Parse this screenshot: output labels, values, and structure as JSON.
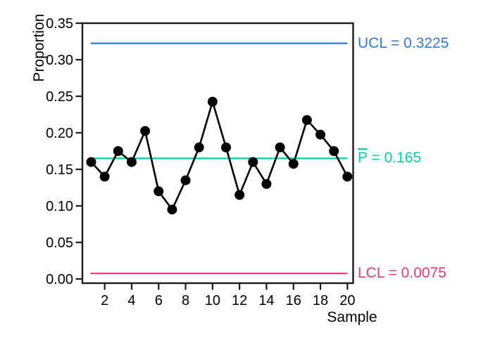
{
  "figure": {
    "background": "#ffffff"
  },
  "chart_data": {
    "type": "line",
    "subtype": "p-control-chart",
    "title": "",
    "xlabel": "Sample",
    "ylabel": "Proportion",
    "x": [
      1,
      2,
      3,
      4,
      5,
      6,
      7,
      8,
      9,
      10,
      11,
      12,
      13,
      14,
      15,
      16,
      17,
      18,
      19,
      20
    ],
    "series": [
      {
        "name": "Proportion",
        "values": [
          0.16,
          0.14,
          0.175,
          0.16,
          0.2025,
          0.12,
          0.095,
          0.135,
          0.18,
          0.2425,
          0.18,
          0.115,
          0.16,
          0.13,
          0.18,
          0.1575,
          0.2175,
          0.1975,
          0.175,
          0.14
        ],
        "color": "#000000",
        "marker": "circle"
      }
    ],
    "reference_lines": [
      {
        "id": "ucl",
        "value": 0.3225,
        "label": "UCL = 0.3225",
        "color": "#2e7ad8"
      },
      {
        "id": "center",
        "value": 0.165,
        "label_prefix": "P",
        "label_rest": " = 0.165",
        "overbar_on_prefix": true,
        "color": "#00d2a2"
      },
      {
        "id": "lcl",
        "value": 0.0075,
        "label": "LCL = 0.0075",
        "color": "#f23572"
      }
    ],
    "xticks": [
      2,
      4,
      6,
      8,
      10,
      12,
      14,
      16,
      18,
      20
    ],
    "yticks": [
      0.0,
      0.05,
      0.1,
      0.15,
      0.2,
      0.25,
      0.3,
      0.35
    ],
    "ytick_decimals": 2,
    "ylim": [
      0,
      0.35
    ],
    "xlim": [
      0.35,
      20.45
    ],
    "grid": false,
    "legend": "none",
    "axis_color": "#1a1a1a",
    "text_color": "#000000"
  }
}
